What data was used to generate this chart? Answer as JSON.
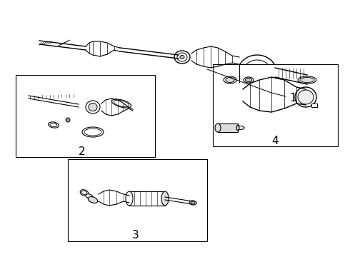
{
  "background_color": "#ffffff",
  "line_color": "#000000",
  "box_color": "#ffffff",
  "box_edge_color": "#000000",
  "label_1": "1",
  "label_2": "2",
  "label_3": "3",
  "label_4": "4",
  "label_fontsize": 11,
  "fig_width": 4.9,
  "fig_height": 3.6,
  "dpi": 100
}
